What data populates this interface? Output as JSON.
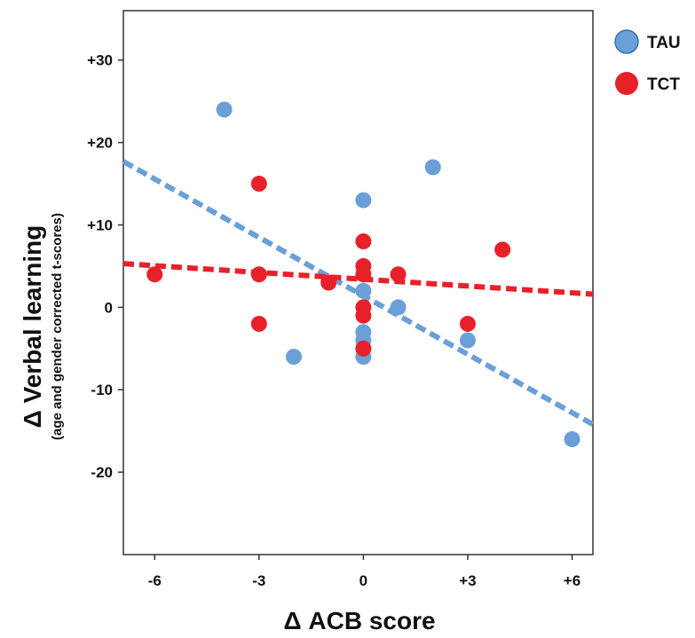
{
  "chart_data": {
    "type": "scatter",
    "xlabel": "Δ ACB score",
    "ylabel": "Δ Verbal learning",
    "ylabel_sub": "(age and gender corrected t-scores)",
    "xlim": [
      -6.9,
      6.6
    ],
    "ylim": [
      -30,
      36
    ],
    "x_ticks": [
      {
        "value": -6,
        "label": "-6"
      },
      {
        "value": -3,
        "label": "-3"
      },
      {
        "value": 0,
        "label": "0"
      },
      {
        "value": 3,
        "label": "+3"
      },
      {
        "value": 6,
        "label": "+6"
      }
    ],
    "y_ticks": [
      {
        "value": 30,
        "label": "+30"
      },
      {
        "value": 20,
        "label": "+20"
      },
      {
        "value": 10,
        "label": "+10"
      },
      {
        "value": 0,
        "label": "0"
      },
      {
        "value": -10,
        "label": "-10"
      },
      {
        "value": -20,
        "label": "-20"
      }
    ],
    "grid": false,
    "legend_position": "top-right outside",
    "series": [
      {
        "name": "TAU",
        "color": "#6a9fd8",
        "points": [
          [
            -4,
            24
          ],
          [
            2,
            17
          ],
          [
            0,
            13
          ],
          [
            0,
            2
          ],
          [
            1,
            0
          ],
          [
            0,
            -3
          ],
          [
            0,
            -4
          ],
          [
            0,
            -5
          ],
          [
            0,
            -6
          ],
          [
            -2,
            -6
          ],
          [
            3,
            -4
          ],
          [
            6,
            -16
          ]
        ],
        "trendline": {
          "x": [
            -6.9,
            6.6
          ],
          "y": [
            17.7,
            -14.2
          ]
        }
      },
      {
        "name": "TCT",
        "color": "#e8202a",
        "points": [
          [
            -3,
            15
          ],
          [
            0,
            8
          ],
          [
            4,
            7
          ],
          [
            0,
            5
          ],
          [
            0,
            4
          ],
          [
            1,
            4
          ],
          [
            -6,
            4
          ],
          [
            -3,
            4
          ],
          [
            -1,
            3
          ],
          [
            0,
            0
          ],
          [
            0,
            -1
          ],
          [
            -3,
            -2
          ],
          [
            3,
            -2
          ],
          [
            0,
            -5
          ]
        ],
        "trendline": {
          "x": [
            -6.9,
            6.6
          ],
          "y": [
            5.3,
            1.6
          ]
        }
      }
    ]
  }
}
